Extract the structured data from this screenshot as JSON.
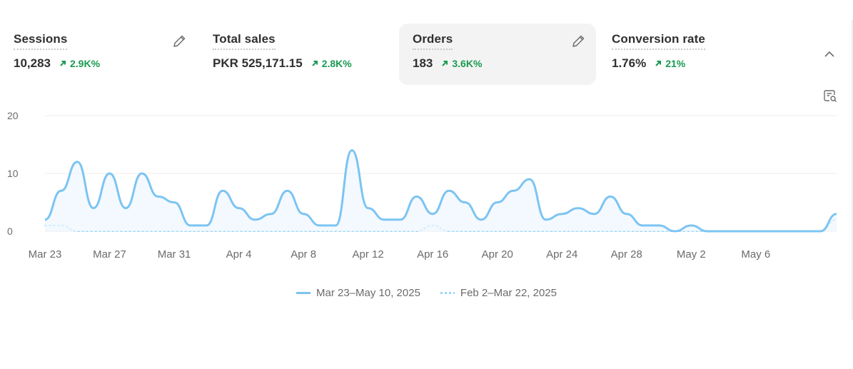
{
  "metrics": [
    {
      "label": "Sessions",
      "value": "10,283",
      "delta": "2.9K%",
      "active": true,
      "editable": true
    },
    {
      "label": "Total sales",
      "value": "PKR 525,171.15",
      "delta": "2.8K%",
      "active": false,
      "editable": false
    },
    {
      "label": "Orders",
      "value": "183",
      "delta": "3.6K%",
      "active": true,
      "editable": true
    },
    {
      "label": "Conversion rate",
      "value": "1.76%",
      "delta": "21%",
      "active": false,
      "editable": false
    }
  ],
  "icons": {
    "edit": "pencil-icon",
    "collapse": "chevron-up-icon",
    "report": "report-search-icon",
    "delta": "arrow-up-right-icon"
  },
  "colors": {
    "primary_series": "#7cc4f2",
    "comparison_series": "#9ad6f5",
    "delta_positive": "#1a9a52"
  },
  "chart_data": {
    "type": "line",
    "y_ticks": [
      "20",
      "10",
      "0"
    ],
    "ylim": [
      0,
      20
    ],
    "x_tick_labels": [
      "Mar 23",
      "Mar 27",
      "Mar 31",
      "Apr 4",
      "Apr 8",
      "Apr 12",
      "Apr 16",
      "Apr 20",
      "Apr 24",
      "Apr 28",
      "May 2",
      "May 6"
    ],
    "grid": true,
    "legend_position": "bottom",
    "series": [
      {
        "name": "Mar 23–May 10, 2025",
        "style": "solid",
        "values": [
          2,
          7,
          12,
          4,
          10,
          4,
          10,
          6,
          5,
          1,
          1,
          7,
          4,
          2,
          3,
          7,
          3,
          1,
          1,
          14,
          4,
          2,
          2,
          6,
          3,
          7,
          5,
          2,
          5,
          7,
          9,
          2,
          3,
          4,
          3,
          6,
          3,
          1,
          1,
          0,
          1,
          0,
          0,
          0,
          0,
          0,
          0,
          0,
          0,
          3
        ]
      },
      {
        "name": "Feb 2–Mar 22, 2025",
        "style": "dotted",
        "values": [
          1,
          1,
          0,
          0,
          0,
          0,
          0,
          0,
          0,
          0,
          0,
          0,
          0,
          0,
          0,
          0,
          0,
          0,
          0,
          0,
          0,
          0,
          0,
          0,
          1,
          0,
          0,
          0,
          0,
          0,
          0,
          0,
          0,
          0,
          0,
          0,
          0,
          0,
          0,
          0,
          0,
          0,
          0,
          0,
          0,
          0,
          0,
          0,
          0,
          2
        ]
      }
    ]
  }
}
